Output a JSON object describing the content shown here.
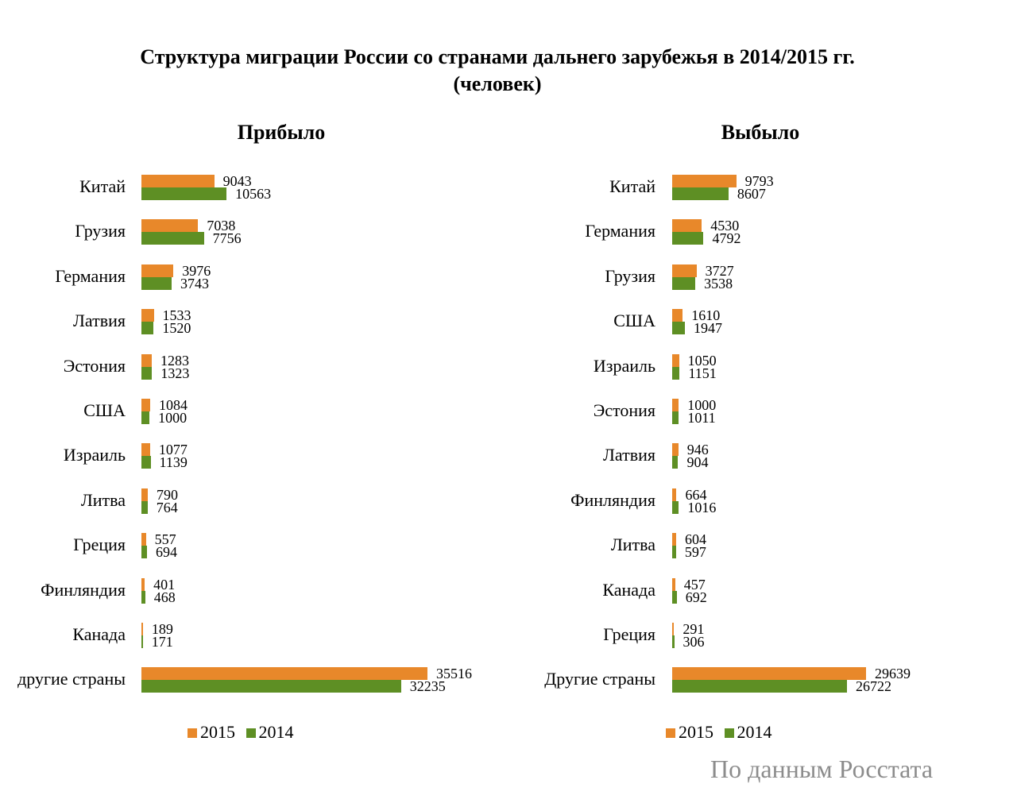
{
  "title_line1": "Структура миграции России со странами дальнего зарубежья в 2014/2015 гг.",
  "title_line2": "(человек)",
  "source": "По данным Росстата",
  "colors": {
    "2015": "#e8882a",
    "2014": "#5e8f24"
  },
  "chart_data": [
    {
      "type": "bar",
      "orientation": "horizontal",
      "title": "Прибыло",
      "legend_position": "bottom",
      "categories": [
        "Китай",
        "Грузия",
        "Германия",
        "Латвия",
        "Эстония",
        "США",
        "Израиль",
        "Литва",
        "Греция",
        "Финляндия",
        "Канада",
        "другие страны"
      ],
      "series": [
        {
          "name": "2015",
          "values": [
            9043,
            7038,
            3976,
            1533,
            1283,
            1084,
            1077,
            790,
            557,
            401,
            189,
            35516
          ]
        },
        {
          "name": "2014",
          "values": [
            10563,
            7756,
            3743,
            1520,
            1323,
            1000,
            1139,
            764,
            694,
            468,
            171,
            32235
          ]
        }
      ]
    },
    {
      "type": "bar",
      "orientation": "horizontal",
      "title": "Выбыло",
      "legend_position": "bottom",
      "categories": [
        "Китай",
        "Германия",
        "Грузия",
        "США",
        "Израиль",
        "Эстония",
        "Латвия",
        "Финляндия",
        "Литва",
        "Канада",
        "Греция",
        "Другие страны"
      ],
      "series": [
        {
          "name": "2015",
          "values": [
            9793,
            4530,
            3727,
            1610,
            1050,
            1000,
            946,
            664,
            604,
            457,
            291,
            29639
          ]
        },
        {
          "name": "2014",
          "values": [
            8607,
            4792,
            3538,
            1947,
            1151,
            1011,
            904,
            1016,
            597,
            692,
            306,
            26722
          ]
        }
      ]
    }
  ]
}
